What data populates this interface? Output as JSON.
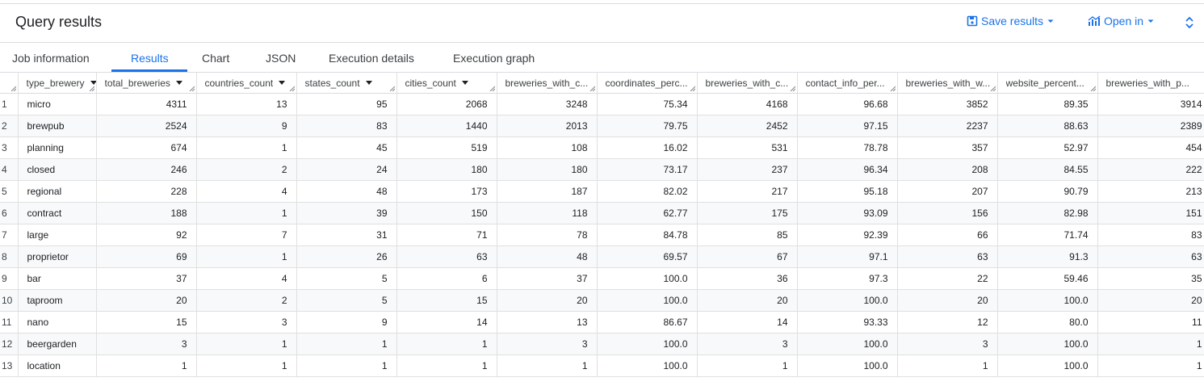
{
  "header": {
    "title": "Query results",
    "save_label": "Save results",
    "open_label": "Open in"
  },
  "tabs": [
    {
      "label": "Job information"
    },
    {
      "label": "Results"
    },
    {
      "label": "Chart"
    },
    {
      "label": "JSON"
    },
    {
      "label": "Execution details"
    },
    {
      "label": "Execution graph"
    }
  ],
  "colors": {
    "accent": "#1a73e8",
    "border": "#dadce0",
    "stripe": "#f8f9fa"
  },
  "table": {
    "columns": [
      {
        "label": "type_brewery",
        "sortable": true
      },
      {
        "label": "total_breweries",
        "sortable": true
      },
      {
        "label": "countries_count",
        "sortable": true
      },
      {
        "label": "states_count",
        "sortable": true
      },
      {
        "label": "cities_count",
        "sortable": true
      },
      {
        "label": "breweries_with_c...",
        "sortable": false
      },
      {
        "label": "coordinates_perc...",
        "sortable": false
      },
      {
        "label": "breweries_with_c...",
        "sortable": false
      },
      {
        "label": "contact_info_per...",
        "sortable": false
      },
      {
        "label": "breweries_with_w...",
        "sortable": false
      },
      {
        "label": "website_percent...",
        "sortable": false
      },
      {
        "label": "breweries_with_p...",
        "sortable": false
      }
    ],
    "rows": [
      {
        "n": "1",
        "cells": [
          "micro",
          "4311",
          "13",
          "95",
          "2068",
          "3248",
          "75.34",
          "4168",
          "96.68",
          "3852",
          "89.35",
          "3914"
        ]
      },
      {
        "n": "2",
        "cells": [
          "brewpub",
          "2524",
          "9",
          "83",
          "1440",
          "2013",
          "79.75",
          "2452",
          "97.15",
          "2237",
          "88.63",
          "2389"
        ]
      },
      {
        "n": "3",
        "cells": [
          "planning",
          "674",
          "1",
          "45",
          "519",
          "108",
          "16.02",
          "531",
          "78.78",
          "357",
          "52.97",
          "454"
        ]
      },
      {
        "n": "4",
        "cells": [
          "closed",
          "246",
          "2",
          "24",
          "180",
          "180",
          "73.17",
          "237",
          "96.34",
          "208",
          "84.55",
          "222"
        ]
      },
      {
        "n": "5",
        "cells": [
          "regional",
          "228",
          "4",
          "48",
          "173",
          "187",
          "82.02",
          "217",
          "95.18",
          "207",
          "90.79",
          "213"
        ]
      },
      {
        "n": "6",
        "cells": [
          "contract",
          "188",
          "1",
          "39",
          "150",
          "118",
          "62.77",
          "175",
          "93.09",
          "156",
          "82.98",
          "151"
        ]
      },
      {
        "n": "7",
        "cells": [
          "large",
          "92",
          "7",
          "31",
          "71",
          "78",
          "84.78",
          "85",
          "92.39",
          "66",
          "71.74",
          "83"
        ]
      },
      {
        "n": "8",
        "cells": [
          "proprietor",
          "69",
          "1",
          "26",
          "63",
          "48",
          "69.57",
          "67",
          "97.1",
          "63",
          "91.3",
          "63"
        ]
      },
      {
        "n": "9",
        "cells": [
          "bar",
          "37",
          "4",
          "5",
          "6",
          "37",
          "100.0",
          "36",
          "97.3",
          "22",
          "59.46",
          "35"
        ]
      },
      {
        "n": "10",
        "cells": [
          "taproom",
          "20",
          "2",
          "5",
          "15",
          "20",
          "100.0",
          "20",
          "100.0",
          "20",
          "100.0",
          "20"
        ]
      },
      {
        "n": "11",
        "cells": [
          "nano",
          "15",
          "3",
          "9",
          "14",
          "13",
          "86.67",
          "14",
          "93.33",
          "12",
          "80.0",
          "11"
        ]
      },
      {
        "n": "12",
        "cells": [
          "beergarden",
          "3",
          "1",
          "1",
          "1",
          "3",
          "100.0",
          "3",
          "100.0",
          "3",
          "100.0",
          "1"
        ]
      },
      {
        "n": "13",
        "cells": [
          "location",
          "1",
          "1",
          "1",
          "1",
          "1",
          "100.0",
          "1",
          "100.0",
          "1",
          "100.0",
          "1"
        ]
      }
    ]
  }
}
